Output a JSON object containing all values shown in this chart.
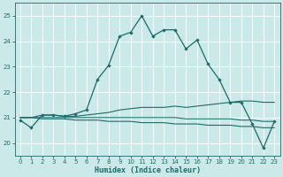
{
  "title": "",
  "xlabel": "Humidex (Indice chaleur)",
  "ylabel": "",
  "xlim": [
    -0.5,
    23.5
  ],
  "ylim": [
    19.5,
    25.5
  ],
  "yticks": [
    20,
    21,
    22,
    23,
    24,
    25
  ],
  "xticks": [
    0,
    1,
    2,
    3,
    4,
    5,
    6,
    7,
    8,
    9,
    10,
    11,
    12,
    13,
    14,
    15,
    16,
    17,
    18,
    19,
    20,
    21,
    22,
    23
  ],
  "background_color": "#cce9e9",
  "line_color": "#1a6b6b",
  "y_main": [
    20.9,
    20.6,
    21.1,
    21.1,
    21.05,
    21.15,
    21.3,
    22.5,
    23.05,
    24.2,
    24.35,
    25.0,
    24.2,
    24.45,
    24.45,
    23.7,
    24.05,
    23.1,
    22.5,
    21.6,
    21.6,
    20.75,
    19.8,
    20.85
  ],
  "y_upper": [
    21.0,
    21.0,
    21.1,
    21.1,
    21.05,
    21.05,
    21.1,
    21.15,
    21.2,
    21.3,
    21.35,
    21.4,
    21.4,
    21.4,
    21.45,
    21.4,
    21.45,
    21.5,
    21.55,
    21.6,
    21.65,
    21.65,
    21.6,
    21.6
  ],
  "y_lower": [
    21.0,
    21.0,
    20.95,
    20.95,
    20.95,
    20.9,
    20.9,
    20.9,
    20.85,
    20.85,
    20.85,
    20.8,
    20.8,
    20.8,
    20.75,
    20.75,
    20.75,
    20.7,
    20.7,
    20.7,
    20.65,
    20.65,
    20.6,
    20.6
  ],
  "y_mid": [
    21.0,
    21.0,
    21.0,
    21.0,
    21.0,
    21.0,
    21.0,
    21.0,
    21.0,
    21.0,
    21.0,
    21.0,
    21.0,
    21.0,
    21.0,
    20.95,
    20.95,
    20.95,
    20.95,
    20.95,
    20.9,
    20.9,
    20.85,
    20.85
  ]
}
